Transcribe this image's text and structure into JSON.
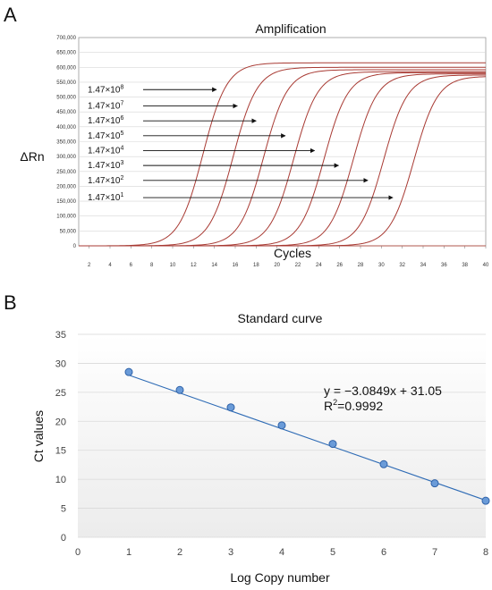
{
  "panels": {
    "a_letter": "A",
    "b_letter": "B"
  },
  "chart_data": [
    {
      "type": "line",
      "title": "Amplification",
      "xlabel": "Cycles",
      "ylabel": "ΔRn",
      "xlim": [
        1,
        40
      ],
      "ylim": [
        0,
        700000
      ],
      "xticks": [
        "2",
        "4",
        "6",
        "8",
        "10",
        "12",
        "14",
        "16",
        "18",
        "20",
        "22",
        "24",
        "26",
        "28",
        "30",
        "32",
        "34",
        "36",
        "38",
        "40"
      ],
      "yticks": [
        "0",
        "50,000",
        "100,000",
        "150,000",
        "200,000",
        "250,000",
        "300,000",
        "350,000",
        "400,000",
        "450,000",
        "500,000",
        "550,000",
        "600,000",
        "650,000",
        "700,000"
      ],
      "grid": "horizontal",
      "series": [
        {
          "ct": 12.9,
          "plateau": 615000
        },
        {
          "ct": 15.8,
          "plateau": 600000
        },
        {
          "ct": 18.7,
          "plateau": 592000
        },
        {
          "ct": 21.6,
          "plateau": 585000
        },
        {
          "ct": 24.5,
          "plateau": 582000
        },
        {
          "ct": 27.3,
          "plateau": 578000
        },
        {
          "ct": 30.2,
          "plateau": 574000
        },
        {
          "ct": 33.1,
          "plateau": 570000
        }
      ],
      "annotations": [
        {
          "base": "1.47×10",
          "exp": "8",
          "target_cycle": 14.2,
          "y": 525000
        },
        {
          "base": "1.47×10",
          "exp": "7",
          "target_cycle": 16.2,
          "y": 470000
        },
        {
          "base": "1.47×10",
          "exp": "6",
          "target_cycle": 18.0,
          "y": 420000
        },
        {
          "base": "1.47×10",
          "exp": "5",
          "target_cycle": 20.8,
          "y": 370000
        },
        {
          "base": "1.47×10",
          "exp": "4",
          "target_cycle": 23.6,
          "y": 320000
        },
        {
          "base": "1.47×10",
          "exp": "3",
          "target_cycle": 25.9,
          "y": 270000
        },
        {
          "base": "1.47×10",
          "exp": "2",
          "target_cycle": 28.7,
          "y": 220000
        },
        {
          "base": "1.47×10",
          "exp": "1",
          "target_cycle": 31.1,
          "y": 162000
        }
      ]
    },
    {
      "type": "scatter",
      "title": "Standard curve",
      "xlabel": "Log Copy number",
      "ylabel": "Ct values",
      "xlim": [
        0,
        8
      ],
      "ylim": [
        0,
        35
      ],
      "xticks": [
        "0",
        "1",
        "2",
        "3",
        "4",
        "5",
        "6",
        "7",
        "8"
      ],
      "yticks": [
        "0",
        "5",
        "10",
        "15",
        "20",
        "25",
        "30",
        "35"
      ],
      "points": [
        {
          "x": 1,
          "y": 28.5
        },
        {
          "x": 2,
          "y": 25.4
        },
        {
          "x": 3,
          "y": 22.4
        },
        {
          "x": 4,
          "y": 19.3
        },
        {
          "x": 5,
          "y": 16.1
        },
        {
          "x": 6,
          "y": 12.6
        },
        {
          "x": 7,
          "y": 9.3
        },
        {
          "x": 8,
          "y": 6.3
        }
      ],
      "trendline": {
        "slope": -3.0849,
        "intercept": 31.05
      },
      "equation": "y = −3.0849x + 31.05",
      "r2_prefix": "R",
      "r2_exp": "2",
      "r2_value": "=0.9992"
    }
  ]
}
